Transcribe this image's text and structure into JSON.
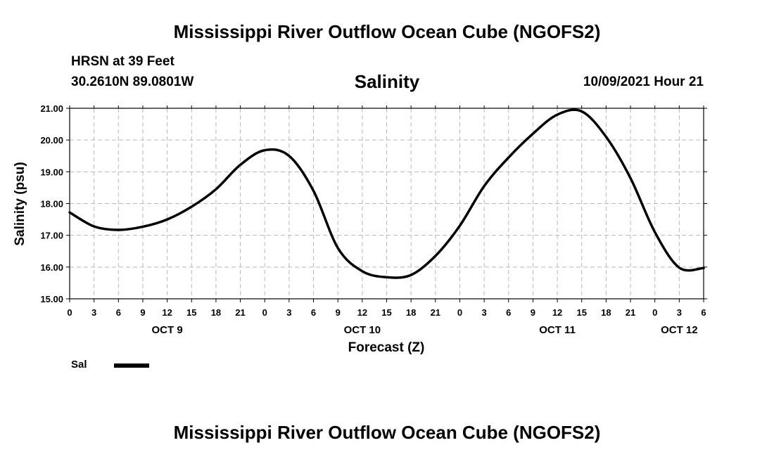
{
  "header": {
    "title": "Mississippi River Outflow Ocean Cube (NGOFS2)",
    "station": "HRSN at 39 Feet",
    "coords": "30.2610N  89.0801W",
    "subtitle": "Salinity",
    "timestamp": "10/09/2021 Hour 21"
  },
  "footer": {
    "title": "Mississippi River Outflow Ocean Cube (NGOFS2)"
  },
  "legend": {
    "label": "Sal",
    "color": "#000000"
  },
  "chart_data": {
    "type": "line",
    "title": "Salinity",
    "xlabel": "Forecast (Z)",
    "ylabel": "Salinity (psu)",
    "xlim": [
      0,
      78
    ],
    "ylim": [
      15.0,
      21.0
    ],
    "grid": true,
    "y_ticks": [
      "15.00",
      "16.00",
      "17.00",
      "18.00",
      "19.00",
      "20.00",
      "21.00"
    ],
    "x_ticks": [
      "0",
      "3",
      "6",
      "9",
      "12",
      "15",
      "18",
      "21",
      "0",
      "3",
      "6",
      "9",
      "12",
      "15",
      "18",
      "21",
      "0",
      "3",
      "6",
      "9",
      "12",
      "15",
      "18",
      "21",
      "0",
      "3",
      "6"
    ],
    "date_labels": [
      {
        "label": "OCT 9",
        "hour": 12
      },
      {
        "label": "OCT 10",
        "hour": 36
      },
      {
        "label": "OCT 11",
        "hour": 60
      },
      {
        "label": "OCT 12",
        "hour": 75
      }
    ],
    "series": [
      {
        "name": "Sal",
        "color": "#000000",
        "x": [
          0,
          3,
          6,
          9,
          12,
          15,
          18,
          21,
          24,
          27,
          30,
          33,
          36,
          39,
          42,
          45,
          48,
          51,
          54,
          57,
          60,
          63,
          66,
          69,
          72,
          75,
          78
        ],
        "values": [
          17.72,
          17.28,
          17.17,
          17.27,
          17.5,
          17.9,
          18.45,
          19.22,
          19.68,
          19.5,
          18.4,
          16.6,
          15.87,
          15.68,
          15.75,
          16.35,
          17.3,
          18.55,
          19.45,
          20.2,
          20.8,
          20.9,
          20.1,
          18.8,
          17.1,
          15.98,
          15.97
        ]
      }
    ],
    "legend": "bottom-left"
  }
}
